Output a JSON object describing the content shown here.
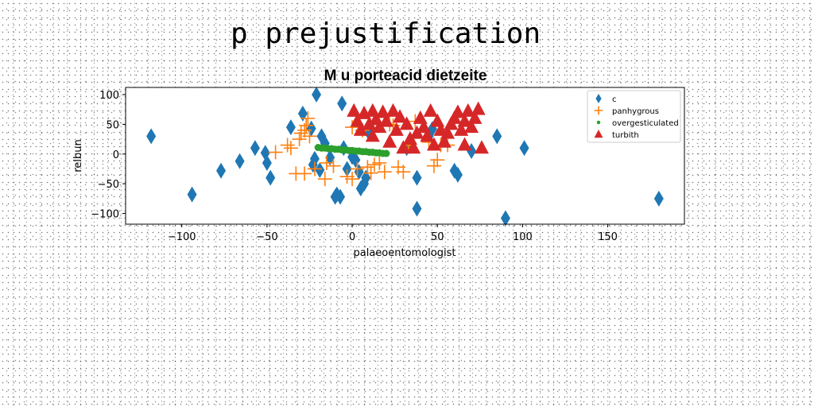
{
  "figure_title": "p prejustification",
  "chart_data": {
    "type": "scatter",
    "title": "M u porteacid dietzeite",
    "xlabel": "palaeoentomologist",
    "ylabel": "relbun",
    "xlim": [
      -133,
      195
    ],
    "ylim": [
      -118,
      112
    ],
    "xticks": [
      -100,
      -50,
      0,
      50,
      100,
      150
    ],
    "yticks": [
      -100,
      -50,
      0,
      50,
      100
    ],
    "grid": false,
    "legend_position": "top-right",
    "series": [
      {
        "name": "c",
        "marker": "diamond",
        "color": "#1f77b4",
        "points": [
          [
            -118,
            30
          ],
          [
            -94,
            -68
          ],
          [
            -77,
            -28
          ],
          [
            -66,
            -12
          ],
          [
            -57,
            10
          ],
          [
            -51,
            2
          ],
          [
            -50,
            -15
          ],
          [
            -48,
            -40
          ],
          [
            -36,
            45
          ],
          [
            -29,
            68
          ],
          [
            -24,
            43
          ],
          [
            -23,
            -18
          ],
          [
            -22,
            -8
          ],
          [
            -21,
            100
          ],
          [
            -19,
            -27
          ],
          [
            -18,
            30
          ],
          [
            -16,
            18
          ],
          [
            -13,
            -6
          ],
          [
            -10,
            -72
          ],
          [
            -9,
            -68
          ],
          [
            -7,
            -72
          ],
          [
            -6,
            85
          ],
          [
            -5,
            10
          ],
          [
            -3,
            -25
          ],
          [
            0,
            -5
          ],
          [
            2,
            -10
          ],
          [
            4,
            -30
          ],
          [
            5,
            -58
          ],
          [
            7,
            -50
          ],
          [
            8,
            -40
          ],
          [
            10,
            35
          ],
          [
            32,
            10
          ],
          [
            38,
            -40
          ],
          [
            38,
            -92
          ],
          [
            45,
            30
          ],
          [
            47,
            42
          ],
          [
            60,
            -28
          ],
          [
            62,
            -35
          ],
          [
            70,
            5
          ],
          [
            85,
            30
          ],
          [
            90,
            -108
          ],
          [
            101,
            10
          ],
          [
            180,
            -75
          ]
        ]
      },
      {
        "name": "panhygrous",
        "marker": "plus",
        "color": "#ff7f0e",
        "points": [
          [
            -45,
            3
          ],
          [
            -38,
            15
          ],
          [
            -36,
            10
          ],
          [
            -33,
            -33
          ],
          [
            -31,
            25
          ],
          [
            -30,
            35
          ],
          [
            -28,
            40
          ],
          [
            -28,
            -33
          ],
          [
            -27,
            48
          ],
          [
            -26,
            60
          ],
          [
            -25,
            30
          ],
          [
            -22,
            -25
          ],
          [
            -16,
            -42
          ],
          [
            -15,
            -15
          ],
          [
            -11,
            -20
          ],
          [
            -3,
            -38
          ],
          [
            0,
            -42
          ],
          [
            0,
            45
          ],
          [
            3,
            -25
          ],
          [
            6,
            40
          ],
          [
            9,
            -22
          ],
          [
            11,
            -32
          ],
          [
            13,
            -18
          ],
          [
            16,
            -15
          ],
          [
            19,
            -30
          ],
          [
            22,
            50
          ],
          [
            24,
            48
          ],
          [
            27,
            -22
          ],
          [
            30,
            -30
          ],
          [
            33,
            15
          ],
          [
            37,
            55
          ],
          [
            45,
            20
          ],
          [
            48,
            -20
          ],
          [
            50,
            -10
          ],
          [
            52,
            15
          ],
          [
            56,
            15
          ]
        ]
      },
      {
        "name": "overgesticulated",
        "marker": "circle",
        "color": "#2ca02c",
        "points": [
          [
            -20,
            11
          ],
          [
            -18,
            10
          ],
          [
            -16,
            10
          ],
          [
            -14,
            9
          ],
          [
            -12,
            9
          ],
          [
            -10,
            8
          ],
          [
            -8,
            8
          ],
          [
            -6,
            7
          ],
          [
            -4,
            7
          ],
          [
            -2,
            6
          ],
          [
            0,
            6
          ],
          [
            2,
            5
          ],
          [
            4,
            5
          ],
          [
            6,
            4
          ],
          [
            8,
            4
          ],
          [
            10,
            3
          ],
          [
            12,
            3
          ],
          [
            14,
            2
          ],
          [
            16,
            2
          ],
          [
            18,
            1
          ],
          [
            20,
            1
          ]
        ]
      },
      {
        "name": "turbith",
        "marker": "triangle",
        "color": "#d62728",
        "points": [
          [
            1,
            72
          ],
          [
            3,
            55
          ],
          [
            5,
            40
          ],
          [
            7,
            68
          ],
          [
            10,
            50
          ],
          [
            12,
            30
          ],
          [
            12,
            72
          ],
          [
            14,
            58
          ],
          [
            16,
            45
          ],
          [
            18,
            70
          ],
          [
            20,
            55
          ],
          [
            22,
            20
          ],
          [
            24,
            72
          ],
          [
            26,
            40
          ],
          [
            28,
            62
          ],
          [
            30,
            10
          ],
          [
            32,
            50
          ],
          [
            34,
            25
          ],
          [
            36,
            10
          ],
          [
            38,
            35
          ],
          [
            40,
            60
          ],
          [
            42,
            45
          ],
          [
            44,
            30
          ],
          [
            46,
            72
          ],
          [
            48,
            15
          ],
          [
            50,
            55
          ],
          [
            52,
            40
          ],
          [
            54,
            20
          ],
          [
            56,
            35
          ],
          [
            58,
            50
          ],
          [
            60,
            60
          ],
          [
            62,
            70
          ],
          [
            64,
            40
          ],
          [
            66,
            55
          ],
          [
            66,
            15
          ],
          [
            68,
            72
          ],
          [
            70,
            45
          ],
          [
            72,
            60
          ],
          [
            74,
            75
          ],
          [
            76,
            10
          ]
        ]
      }
    ]
  }
}
